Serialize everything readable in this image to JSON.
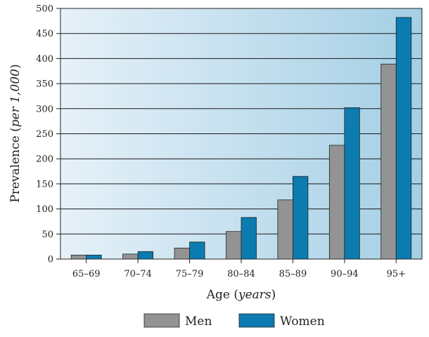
{
  "chart_data": {
    "type": "bar",
    "categories": [
      "65–69",
      "70–74",
      "75–79",
      "80–84",
      "85–89",
      "90–94",
      "95+"
    ],
    "series": [
      {
        "name": "Men",
        "values": [
          8,
          10,
          22,
          55,
          118,
          227,
          389
        ],
        "color": "#939393"
      },
      {
        "name": "Women",
        "values": [
          8,
          15,
          34,
          83,
          165,
          302,
          482
        ],
        "color": "#0b7bb0"
      }
    ],
    "ylim": [
      0,
      500
    ],
    "yticks": [
      0,
      50,
      100,
      150,
      200,
      250,
      300,
      350,
      400,
      450,
      500
    ],
    "xlabel": {
      "main": "Age",
      "italic": "years"
    },
    "ylabel": {
      "main": "Prevalence",
      "italic": "per 1,000"
    },
    "grid": true,
    "legend_position": "bottom-center",
    "background_gradient": [
      "#e6f1f8",
      "#a4cfe5"
    ]
  }
}
